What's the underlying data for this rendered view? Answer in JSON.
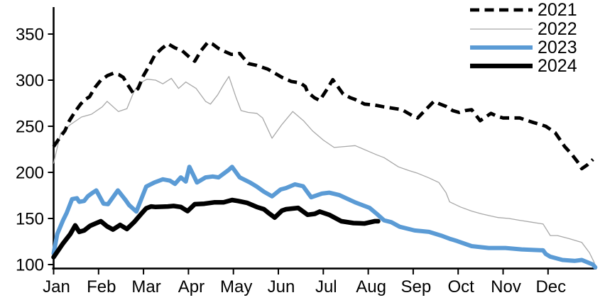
{
  "chart_data": {
    "type": "line",
    "title": "",
    "x_axis": {
      "unit": "month",
      "tick_labels": [
        "Jan",
        "Feb",
        "Mar",
        "Apr",
        "May",
        "Jun",
        "Jul",
        "Aug",
        "Sep",
        "Oct",
        "Nov",
        "Dec"
      ],
      "range": [
        1,
        13.1
      ]
    },
    "y_axis": {
      "ticks": [
        100,
        150,
        200,
        250,
        300,
        350
      ],
      "range": [
        96,
        379
      ]
    },
    "grid": false,
    "legend_position": "top-right",
    "series": [
      {
        "name": "2021",
        "style": {
          "color": "#000000",
          "width": 4.8,
          "dash": "13 7.5"
        },
        "points": [
          [
            1.0,
            228
          ],
          [
            1.1,
            235
          ],
          [
            1.25,
            245
          ],
          [
            1.35,
            256
          ],
          [
            1.48,
            266
          ],
          [
            1.6,
            274
          ],
          [
            1.7,
            279
          ],
          [
            1.8,
            282
          ],
          [
            1.92,
            292
          ],
          [
            2.05,
            300
          ],
          [
            2.2,
            305
          ],
          [
            2.33,
            307.5
          ],
          [
            2.45,
            306
          ],
          [
            2.55,
            303
          ],
          [
            2.65,
            295
          ],
          [
            2.77,
            286
          ],
          [
            2.88,
            291
          ],
          [
            3.0,
            305
          ],
          [
            3.12,
            315
          ],
          [
            3.25,
            327
          ],
          [
            3.4,
            334
          ],
          [
            3.54,
            339.5
          ],
          [
            3.7,
            335
          ],
          [
            3.86,
            332
          ],
          [
            4.02,
            325
          ],
          [
            4.14,
            320.5
          ],
          [
            4.28,
            332
          ],
          [
            4.43,
            341
          ],
          [
            4.54,
            339
          ],
          [
            4.68,
            334
          ],
          [
            4.81,
            331
          ],
          [
            4.95,
            328
          ],
          [
            5.06,
            328
          ],
          [
            5.14,
            329
          ],
          [
            5.33,
            318
          ],
          [
            5.52,
            316
          ],
          [
            5.76,
            312
          ],
          [
            5.89,
            308.5
          ],
          [
            6.08,
            303
          ],
          [
            6.29,
            298.5
          ],
          [
            6.49,
            297
          ],
          [
            6.6,
            293
          ],
          [
            6.65,
            287
          ],
          [
            6.8,
            281
          ],
          [
            6.92,
            278
          ],
          [
            7.08,
            290
          ],
          [
            7.21,
            300.5
          ],
          [
            7.44,
            285
          ],
          [
            7.6,
            281
          ],
          [
            7.71,
            279
          ],
          [
            7.92,
            274
          ],
          [
            8.14,
            273
          ],
          [
            8.35,
            271
          ],
          [
            8.56,
            269.5
          ],
          [
            8.75,
            268
          ],
          [
            8.98,
            261.5
          ],
          [
            9.1,
            259
          ],
          [
            9.28,
            268
          ],
          [
            9.46,
            277
          ],
          [
            9.6,
            274
          ],
          [
            9.73,
            271.5
          ],
          [
            9.88,
            267
          ],
          [
            10.02,
            265
          ],
          [
            10.16,
            267
          ],
          [
            10.3,
            268
          ],
          [
            10.49,
            256
          ],
          [
            10.73,
            264
          ],
          [
            10.86,
            261
          ],
          [
            11.0,
            259
          ],
          [
            11.2,
            259
          ],
          [
            11.37,
            259
          ],
          [
            11.55,
            256
          ],
          [
            11.68,
            254
          ],
          [
            11.82,
            252
          ],
          [
            11.95,
            250
          ],
          [
            12.16,
            243
          ],
          [
            12.37,
            228
          ],
          [
            12.52,
            220
          ],
          [
            12.68,
            210
          ],
          [
            12.75,
            204
          ],
          [
            12.87,
            208
          ],
          [
            13.0,
            214
          ]
        ]
      },
      {
        "name": "2022",
        "style": {
          "color": "#a8a8a8",
          "width": 1.3,
          "dash": ""
        },
        "points": [
          [
            1.0,
            210
          ],
          [
            1.16,
            243
          ],
          [
            1.38,
            252
          ],
          [
            1.62,
            260
          ],
          [
            1.84,
            263
          ],
          [
            2.08,
            271
          ],
          [
            2.19,
            277
          ],
          [
            2.44,
            266
          ],
          [
            2.63,
            269
          ],
          [
            2.79,
            288
          ],
          [
            2.92,
            297
          ],
          [
            3.08,
            301
          ],
          [
            3.27,
            300
          ],
          [
            3.43,
            296
          ],
          [
            3.62,
            302
          ],
          [
            3.78,
            291
          ],
          [
            3.94,
            298
          ],
          [
            4.17,
            291
          ],
          [
            4.38,
            277
          ],
          [
            4.49,
            274
          ],
          [
            4.65,
            284
          ],
          [
            4.78,
            295
          ],
          [
            4.9,
            304
          ],
          [
            5.06,
            281
          ],
          [
            5.17,
            267
          ],
          [
            5.33,
            265
          ],
          [
            5.52,
            264
          ],
          [
            5.65,
            259
          ],
          [
            5.86,
            237
          ],
          [
            6.08,
            252
          ],
          [
            6.32,
            266
          ],
          [
            6.56,
            256
          ],
          [
            6.76,
            245
          ],
          [
            7.0,
            235
          ],
          [
            7.24,
            227
          ],
          [
            7.47,
            228
          ],
          [
            7.71,
            229
          ],
          [
            7.95,
            224
          ],
          [
            8.19,
            219
          ],
          [
            8.35,
            216
          ],
          [
            8.67,
            206
          ],
          [
            8.9,
            202
          ],
          [
            9.1,
            199
          ],
          [
            9.35,
            194
          ],
          [
            9.57,
            189
          ],
          [
            9.73,
            178
          ],
          [
            9.81,
            168
          ],
          [
            10.05,
            162.5
          ],
          [
            10.3,
            158
          ],
          [
            10.52,
            155
          ],
          [
            10.7,
            153
          ],
          [
            10.89,
            151
          ],
          [
            11.13,
            150
          ],
          [
            11.37,
            148
          ],
          [
            11.63,
            146
          ],
          [
            11.89,
            144
          ],
          [
            12.05,
            131.5
          ],
          [
            12.21,
            131.5
          ],
          [
            12.48,
            128
          ],
          [
            12.75,
            124
          ],
          [
            12.92,
            113
          ],
          [
            13.03,
            102
          ]
        ]
      },
      {
        "name": "2023",
        "style": {
          "color": "#5b9bd5",
          "width": 6,
          "dash": ""
        },
        "points": [
          [
            1.0,
            112
          ],
          [
            1.08,
            133
          ],
          [
            1.21,
            148
          ],
          [
            1.29,
            156
          ],
          [
            1.41,
            171
          ],
          [
            1.52,
            172
          ],
          [
            1.57,
            168
          ],
          [
            1.68,
            169
          ],
          [
            1.76,
            174
          ],
          [
            1.87,
            178
          ],
          [
            1.95,
            180.5
          ],
          [
            2.11,
            166
          ],
          [
            2.21,
            165.5
          ],
          [
            2.43,
            180.5
          ],
          [
            2.6,
            170
          ],
          [
            2.68,
            164.5
          ],
          [
            2.84,
            157.5
          ],
          [
            3.06,
            184.5
          ],
          [
            3.24,
            189
          ],
          [
            3.43,
            192.5
          ],
          [
            3.59,
            191
          ],
          [
            3.7,
            187.5
          ],
          [
            3.83,
            194.5
          ],
          [
            3.94,
            190
          ],
          [
            4.02,
            206
          ],
          [
            4.19,
            189
          ],
          [
            4.38,
            194.5
          ],
          [
            4.54,
            195.5
          ],
          [
            4.67,
            194.5
          ],
          [
            4.89,
            202.5
          ],
          [
            4.97,
            206
          ],
          [
            5.14,
            194.5
          ],
          [
            5.37,
            189
          ],
          [
            5.52,
            184.5
          ],
          [
            5.68,
            179
          ],
          [
            5.86,
            174
          ],
          [
            6.05,
            181.5
          ],
          [
            6.17,
            183
          ],
          [
            6.37,
            187
          ],
          [
            6.55,
            185
          ],
          [
            6.73,
            173
          ],
          [
            6.97,
            177
          ],
          [
            7.13,
            178
          ],
          [
            7.35,
            175.5
          ],
          [
            7.71,
            167.5
          ],
          [
            8.03,
            161.5
          ],
          [
            8.19,
            155
          ],
          [
            8.35,
            148
          ],
          [
            8.51,
            146
          ],
          [
            8.7,
            141
          ],
          [
            9.03,
            137
          ],
          [
            9.35,
            135.5
          ],
          [
            9.62,
            131.5
          ],
          [
            9.81,
            128
          ],
          [
            9.98,
            125.5
          ],
          [
            10.3,
            120
          ],
          [
            10.68,
            118
          ],
          [
            11.05,
            118
          ],
          [
            11.41,
            116.5
          ],
          [
            11.89,
            115.5
          ],
          [
            11.95,
            111.5
          ],
          [
            12.05,
            108.5
          ],
          [
            12.32,
            105
          ],
          [
            12.59,
            104
          ],
          [
            12.75,
            105
          ],
          [
            13.0,
            100
          ],
          [
            13.05,
            97
          ]
        ]
      },
      {
        "name": "2024",
        "style": {
          "color": "#000000",
          "width": 6.5,
          "dash": ""
        },
        "points": [
          [
            1.0,
            108
          ],
          [
            1.21,
            123
          ],
          [
            1.37,
            133
          ],
          [
            1.48,
            142.5
          ],
          [
            1.57,
            135.5
          ],
          [
            1.68,
            137
          ],
          [
            1.81,
            142
          ],
          [
            2.05,
            147
          ],
          [
            2.19,
            141.5
          ],
          [
            2.32,
            138
          ],
          [
            2.48,
            143
          ],
          [
            2.63,
            138.5
          ],
          [
            2.79,
            146
          ],
          [
            2.95,
            155
          ],
          [
            3.06,
            161
          ],
          [
            3.17,
            163
          ],
          [
            3.27,
            162.5
          ],
          [
            3.54,
            163
          ],
          [
            3.67,
            163.5
          ],
          [
            3.83,
            162.5
          ],
          [
            3.98,
            158
          ],
          [
            4.14,
            165.5
          ],
          [
            4.35,
            166
          ],
          [
            4.57,
            167.5
          ],
          [
            4.78,
            167.5
          ],
          [
            4.97,
            170
          ],
          [
            5.1,
            169
          ],
          [
            5.3,
            167
          ],
          [
            5.52,
            162.5
          ],
          [
            5.68,
            160
          ],
          [
            5.78,
            156
          ],
          [
            5.92,
            151
          ],
          [
            6.08,
            158.5
          ],
          [
            6.17,
            160
          ],
          [
            6.44,
            161.5
          ],
          [
            6.65,
            154
          ],
          [
            6.81,
            155
          ],
          [
            6.92,
            157.5
          ],
          [
            7.13,
            154
          ],
          [
            7.4,
            147
          ],
          [
            7.67,
            145
          ],
          [
            7.92,
            144.5
          ],
          [
            8.14,
            147
          ],
          [
            8.22,
            147
          ]
        ]
      }
    ]
  },
  "colors": {
    "background": "#ffffff",
    "axis": "#000000",
    "accent_blue": "#5b9bd5",
    "gray_line": "#a8a8a8"
  }
}
